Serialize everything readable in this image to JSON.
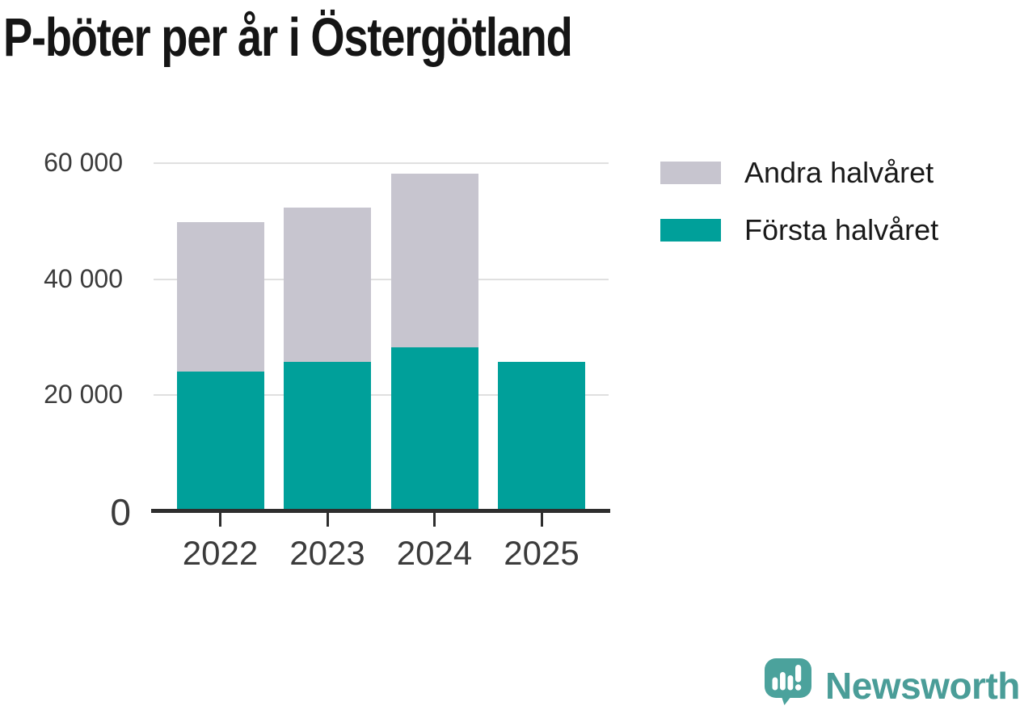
{
  "title": "P-böter per år i Östergötland",
  "chart_data": {
    "type": "bar",
    "stacked": true,
    "title": "P-böter per år i Östergötland",
    "categories": [
      "2022",
      "2023",
      "2024",
      "2025"
    ],
    "series": [
      {
        "name": "Första halvåret",
        "color": "#00A09A",
        "values": [
          24100,
          25800,
          28300,
          25800
        ]
      },
      {
        "name": "Andra halvåret",
        "color": "#C7C5CF",
        "values": [
          25800,
          26600,
          29900,
          0
        ]
      }
    ],
    "totals": [
      49900,
      52400,
      58200,
      25800
    ],
    "xlabel": "",
    "ylabel": "",
    "ylim": [
      0,
      60000
    ],
    "yticks": [
      {
        "value": 0,
        "label": "0"
      },
      {
        "value": 20000,
        "label": "20 000"
      },
      {
        "value": 40000,
        "label": "40 000"
      },
      {
        "value": 60000,
        "label": "60 000"
      }
    ],
    "grid": "horizontal",
    "legend_position": "top-right"
  },
  "legend": {
    "items": [
      {
        "label": "Andra halvåret",
        "color": "#C7C5CF"
      },
      {
        "label": "Första halvåret",
        "color": "#00A09A"
      }
    ]
  },
  "branding": {
    "name": "Newsworthy",
    "logo_color": "#4BA29C",
    "text_color": "#4A9D98"
  },
  "colors": {
    "first_half": "#00A09A",
    "second_half": "#C7C5CF",
    "gridline": "#E0E0E0",
    "axis": "#2E2E2E",
    "tick_label": "#3B3B3B",
    "title": "#151515",
    "background": "#FFFFFF"
  }
}
